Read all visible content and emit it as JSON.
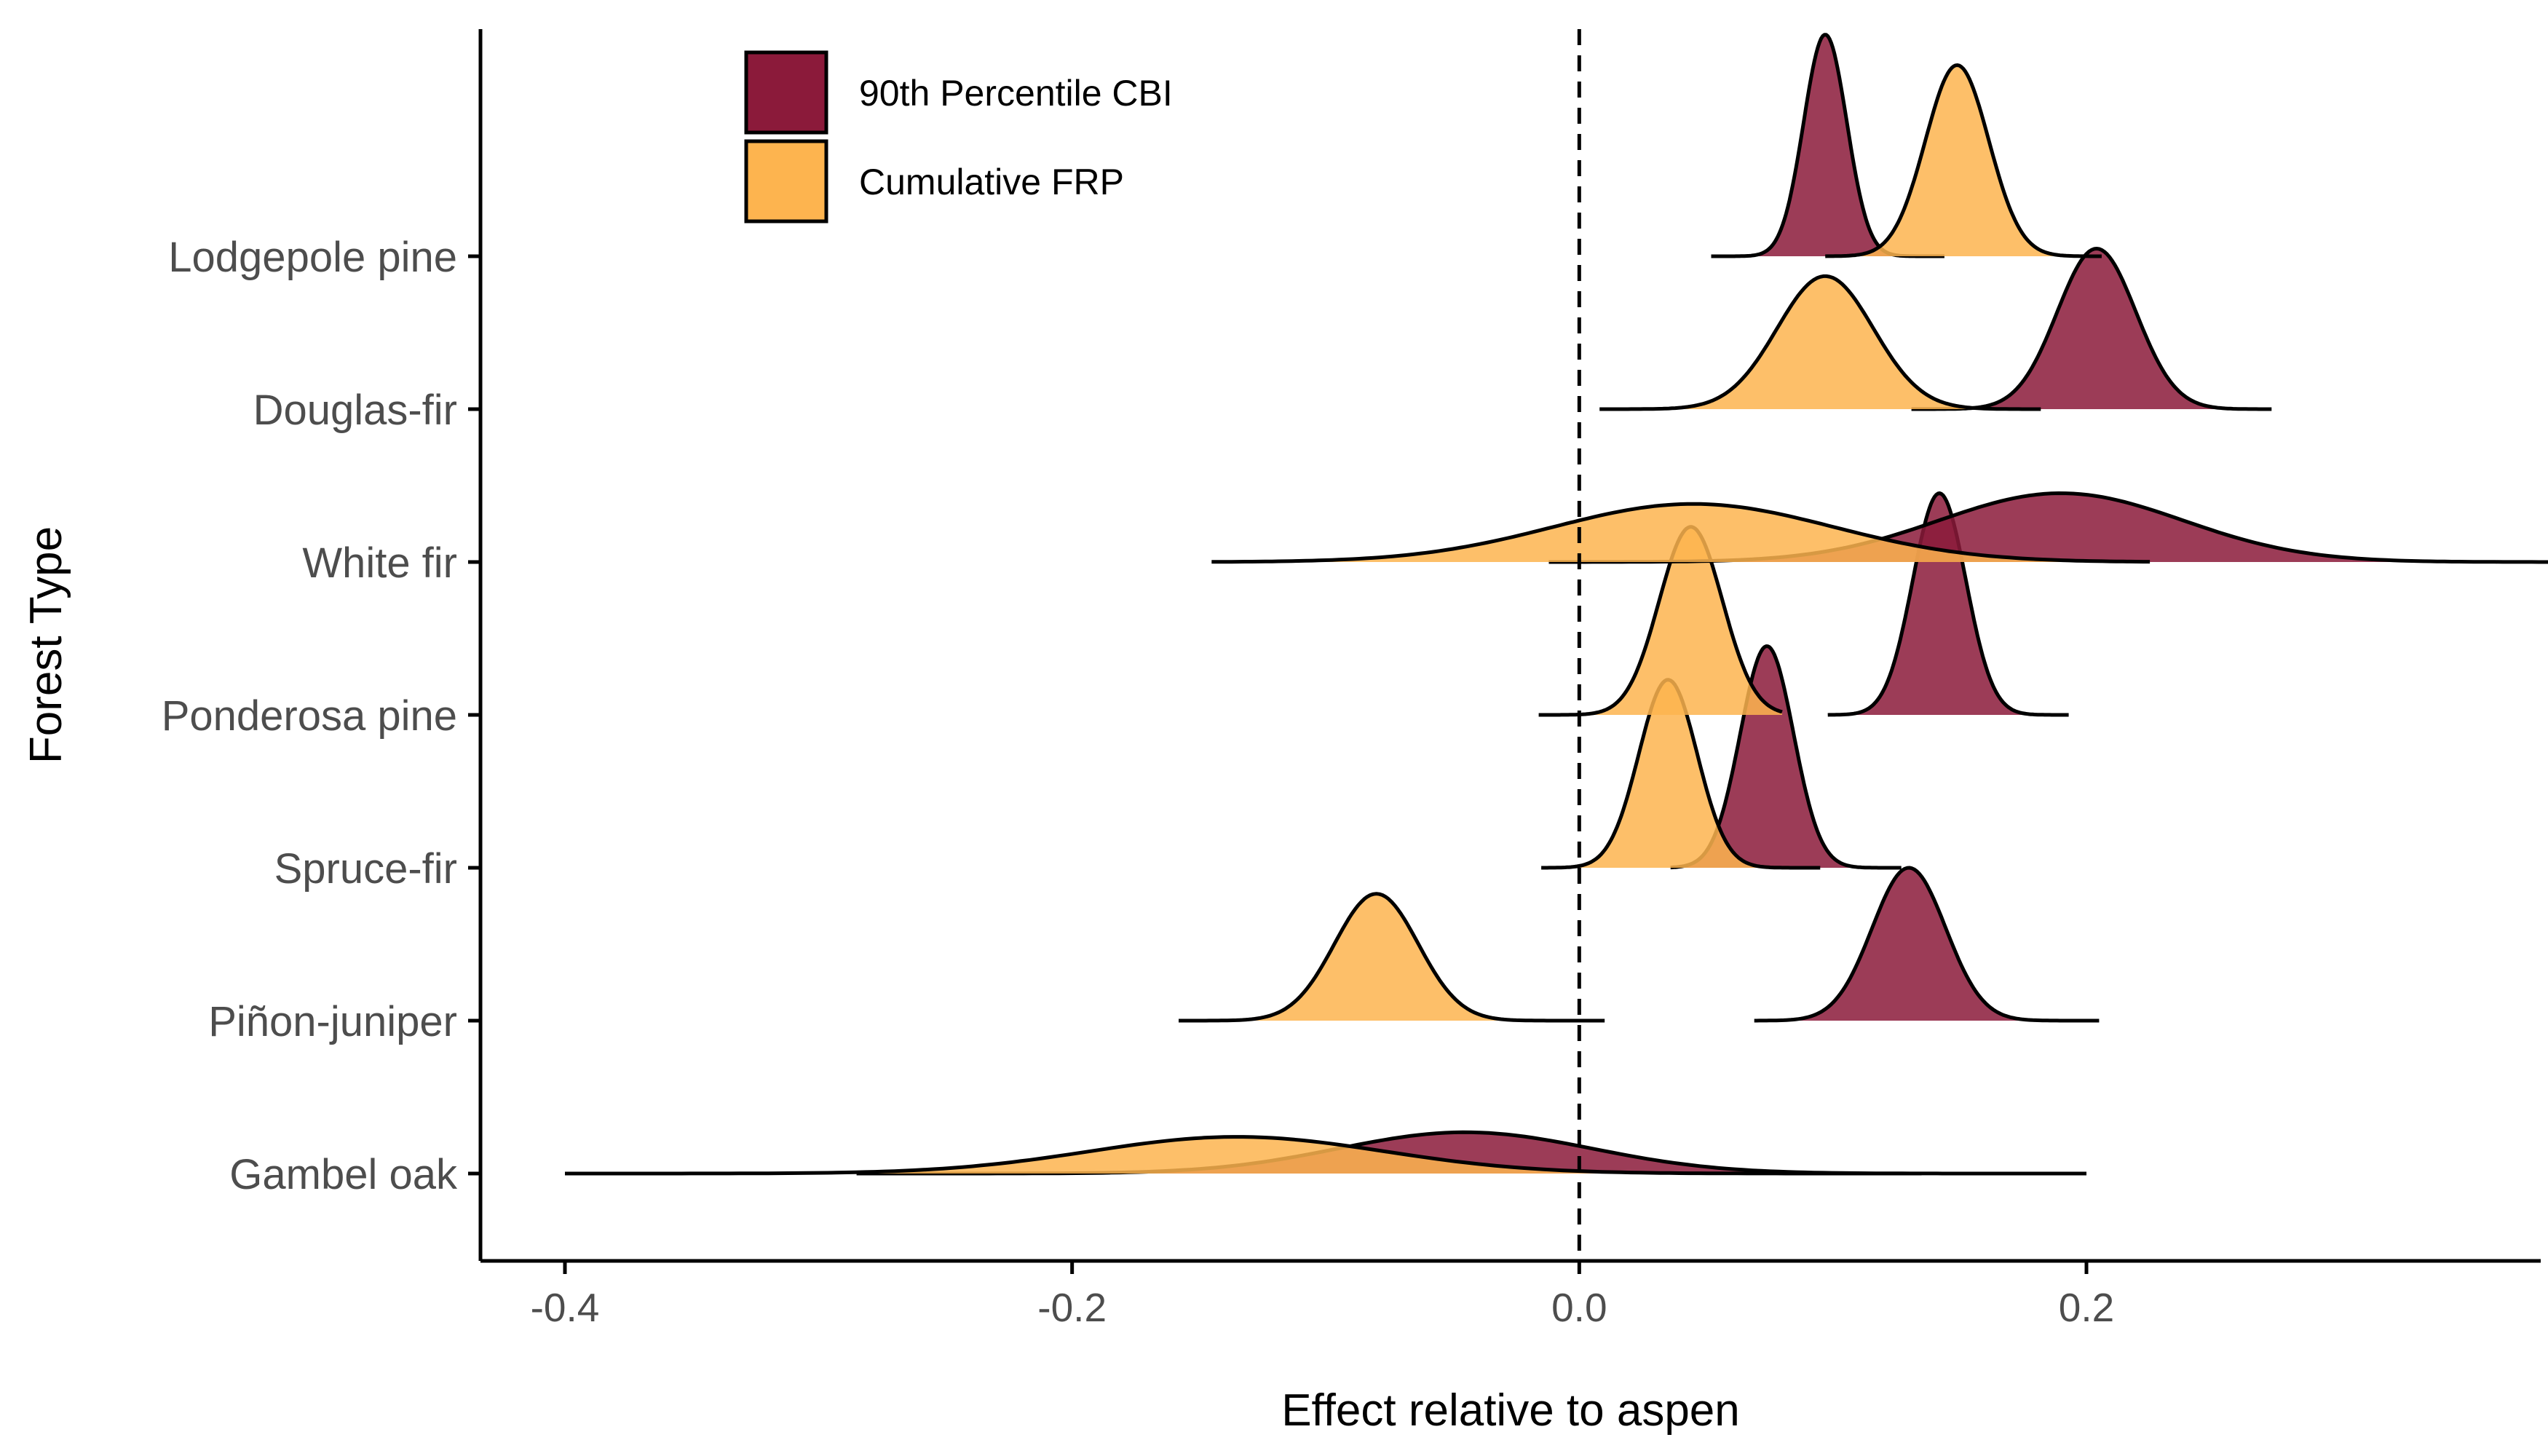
{
  "chart_data": {
    "type": "ridgeline",
    "title": "",
    "xlabel": "Effect relative to aspen",
    "ylabel": "Forest Type",
    "xlim": [
      -0.44,
      0.39
    ],
    "xticks": [
      -0.4,
      -0.2,
      0.0,
      0.2
    ],
    "xtick_labels": [
      "-0.4",
      "-0.2",
      "0.0",
      "0.2"
    ],
    "reference_line": {
      "x": 0,
      "style": "dashed"
    },
    "grid": false,
    "legend": {
      "placement": "top-left"
    },
    "categories": [
      "Lodgepole pine",
      "Douglas-fir",
      "White fir",
      "Ponderosa pine",
      "Spruce-fir",
      "Piñon-juniper",
      "Gambel oak"
    ],
    "series": [
      {
        "name": "90th Percentile CBI",
        "color": "#8B1A3A",
        "distributions": [
          {
            "category": "Lodgepole pine",
            "mean": 0.097,
            "sd": 0.0085,
            "min": 0.052,
            "max": 0.144,
            "height": 1.45
          },
          {
            "category": "Douglas-fir",
            "mean": 0.204,
            "sd": 0.0155,
            "min": 0.131,
            "max": 0.273,
            "height": 1.05
          },
          {
            "category": "White fir",
            "mean": 0.19,
            "sd": 0.048,
            "min": -0.012,
            "max": 0.39,
            "height": 0.45
          },
          {
            "category": "Ponderosa pine",
            "mean": 0.142,
            "sd": 0.0105,
            "min": 0.098,
            "max": 0.193,
            "height": 1.45
          },
          {
            "category": "Spruce-fir",
            "mean": 0.074,
            "sd": 0.0105,
            "min": 0.036,
            "max": 0.127,
            "height": 1.45
          },
          {
            "category": "Piñon-juniper",
            "mean": 0.13,
            "sd": 0.0145,
            "min": 0.069,
            "max": 0.205,
            "height": 1.0
          },
          {
            "category": "Gambel oak",
            "mean": -0.045,
            "sd": 0.05,
            "min": -0.285,
            "max": 0.2,
            "height": 0.27
          }
        ]
      },
      {
        "name": "Cumulative FRP",
        "color": "#FDB44F",
        "distributions": [
          {
            "category": "Lodgepole pine",
            "mean": 0.149,
            "sd": 0.0125,
            "min": 0.097,
            "max": 0.206,
            "height": 1.25
          },
          {
            "category": "Douglas-fir",
            "mean": 0.097,
            "sd": 0.019,
            "min": 0.008,
            "max": 0.182,
            "height": 0.87
          },
          {
            "category": "White fir",
            "mean": 0.045,
            "sd": 0.055,
            "min": -0.145,
            "max": 0.225,
            "height": 0.38
          },
          {
            "category": "Ponderosa pine",
            "mean": 0.044,
            "sd": 0.0125,
            "min": -0.016,
            "max": 0.08,
            "height": 1.23
          },
          {
            "category": "Spruce-fir",
            "mean": 0.035,
            "sd": 0.0115,
            "min": -0.015,
            "max": 0.095,
            "height": 1.23
          },
          {
            "category": "Piñon-juniper",
            "mean": -0.08,
            "sd": 0.0165,
            "min": -0.158,
            "max": 0.01,
            "height": 0.83
          },
          {
            "category": "Gambel oak",
            "mean": -0.135,
            "sd": 0.058,
            "min": -0.4,
            "max": 0.135,
            "height": 0.24
          }
        ]
      }
    ]
  }
}
